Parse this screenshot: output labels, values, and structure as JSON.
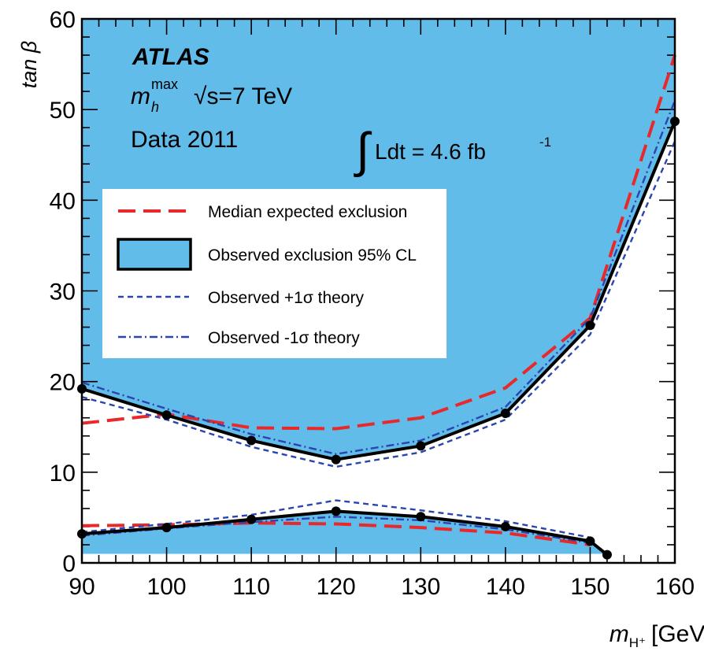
{
  "colors": {
    "fill": "#62bce9",
    "observed": "#000000",
    "expected": "#e8292b",
    "theory": "#2a45b0",
    "frame": "#000000"
  },
  "chart_data": {
    "type": "line",
    "xlabel_main": "m",
    "xlabel_sub": "H⁺",
    "xlabel_unit": "[GeV]",
    "ylabel": "tan β",
    "xlim": [
      90,
      160
    ],
    "ylim": [
      0,
      60
    ],
    "x_ticks": [
      90,
      100,
      110,
      120,
      130,
      140,
      150,
      160
    ],
    "y_ticks": [
      0,
      10,
      20,
      30,
      40,
      50,
      60
    ],
    "grid": false,
    "annotations": {
      "experiment": "ATLAS",
      "scenario_main": "m",
      "scenario_sub": "h",
      "scenario_sup": "max",
      "energy": "√s=7 TeV",
      "dataset": "Data 2011",
      "lumi_integral": "∫",
      "lumi": "Ldt = 4.6 fb",
      "lumi_sup": "-1"
    },
    "legend": {
      "position": "top-left",
      "entries": [
        {
          "label": "Median expected exclusion",
          "style": "long-dash"
        },
        {
          "label": "Observed exclusion 95% CL",
          "style": "filled-box"
        },
        {
          "label": "Observed +1σ theory",
          "style": "dashed"
        },
        {
          "label": "Observed -1σ theory",
          "style": "dash-dot"
        }
      ]
    },
    "series": [
      {
        "name": "Observed exclusion 95% CL",
        "role": "observed_upper",
        "x": [
          90,
          100,
          110,
          120,
          130,
          140,
          150,
          160
        ],
        "y": [
          19.2,
          16.3,
          13.5,
          11.4,
          12.9,
          16.5,
          26.2,
          48.7
        ]
      },
      {
        "name": "Observed exclusion 95% CL",
        "role": "observed_lower",
        "x": [
          90,
          100,
          110,
          120,
          130,
          140,
          150,
          152
        ],
        "y": [
          3.2,
          3.9,
          4.8,
          5.7,
          5.1,
          4.0,
          2.4,
          0.9
        ]
      },
      {
        "name": "Median expected exclusion",
        "role": "expected_upper",
        "x": [
          90,
          100,
          110,
          120,
          130,
          140,
          150,
          160
        ],
        "y": [
          15.4,
          16.4,
          14.9,
          14.8,
          16.0,
          19.3,
          27.0,
          56.0
        ]
      },
      {
        "name": "Median expected exclusion",
        "role": "expected_lower",
        "x": [
          90,
          100,
          110,
          120,
          130,
          140,
          150
        ],
        "y": [
          4.1,
          4.2,
          4.4,
          4.3,
          3.9,
          3.3,
          2.0
        ]
      },
      {
        "name": "Observed +1σ theory",
        "role": "plus_upper",
        "x": [
          90,
          100,
          110,
          120,
          130,
          140,
          150,
          160
        ],
        "y": [
          18.3,
          15.8,
          12.8,
          10.6,
          12.2,
          15.8,
          25.2,
          46.5
        ]
      },
      {
        "name": "Observed +1σ theory",
        "role": "plus_lower",
        "x": [
          90,
          100,
          110,
          120,
          130,
          140,
          150
        ],
        "y": [
          3.4,
          4.3,
          5.3,
          6.9,
          5.8,
          4.6,
          2.8
        ]
      },
      {
        "name": "Observed -1σ theory",
        "role": "minus_upper",
        "x": [
          90,
          100,
          110,
          120,
          130,
          140,
          150,
          160
        ],
        "y": [
          19.9,
          17.0,
          14.2,
          12.0,
          13.5,
          17.2,
          27.0,
          51.0
        ]
      },
      {
        "name": "Observed -1σ theory",
        "role": "minus_lower",
        "x": [
          90,
          100,
          110,
          120,
          130,
          140,
          150
        ],
        "y": [
          3.0,
          3.8,
          4.5,
          5.1,
          4.7,
          3.7,
          2.2
        ]
      }
    ]
  }
}
